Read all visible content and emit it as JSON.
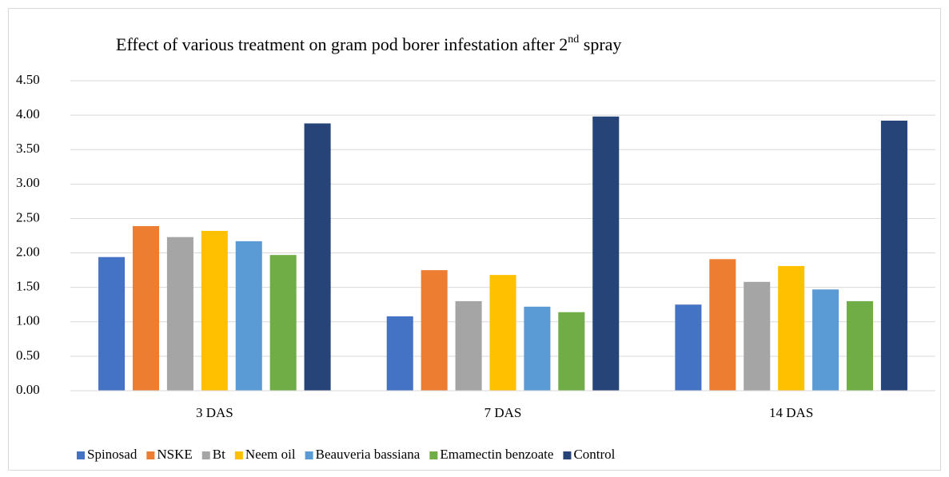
{
  "chart_data": {
    "type": "bar",
    "title_parts": [
      "Effect of various treatment on gram pod borer infestation  after 2",
      "nd",
      " spray"
    ],
    "categories": [
      "3 DAS",
      "7 DAS",
      "14 DAS"
    ],
    "series": [
      {
        "name": "Spinosad",
        "color": "#4472c4",
        "values": [
          1.94,
          1.08,
          1.25
        ]
      },
      {
        "name": "NSKE",
        "color": "#ed7d31",
        "values": [
          2.39,
          1.75,
          1.91
        ]
      },
      {
        "name": "Bt",
        "color": "#a5a5a5",
        "values": [
          2.23,
          1.3,
          1.58
        ]
      },
      {
        "name": "Neem oil",
        "color": "#ffc000",
        "values": [
          2.32,
          1.68,
          1.81
        ]
      },
      {
        "name": "Beauveria bassiana",
        "color": "#5b9bd5",
        "values": [
          2.17,
          1.22,
          1.47
        ]
      },
      {
        "name": "Emamectin benzoate",
        "color": "#70ad47",
        "values": [
          1.97,
          1.14,
          1.3
        ]
      },
      {
        "name": "Control",
        "color": "#264478",
        "values": [
          3.88,
          3.98,
          3.92
        ]
      }
    ],
    "ylim": [
      0,
      4.5
    ],
    "yticks": [
      {
        "value": 0,
        "label": "0.00"
      },
      {
        "value": 0.5,
        "label": "0.50"
      },
      {
        "value": 1,
        "label": "1.00"
      },
      {
        "value": 1.5,
        "label": "1.50"
      },
      {
        "value": 2,
        "label": "2.00"
      },
      {
        "value": 2.5,
        "label": "2.50"
      },
      {
        "value": 3,
        "label": "3.00"
      },
      {
        "value": 3.5,
        "label": "3.50"
      },
      {
        "value": 4,
        "label": "4.00"
      },
      {
        "value": 4.5,
        "label": "4.50"
      }
    ],
    "grid": true,
    "legend": "bottom"
  }
}
